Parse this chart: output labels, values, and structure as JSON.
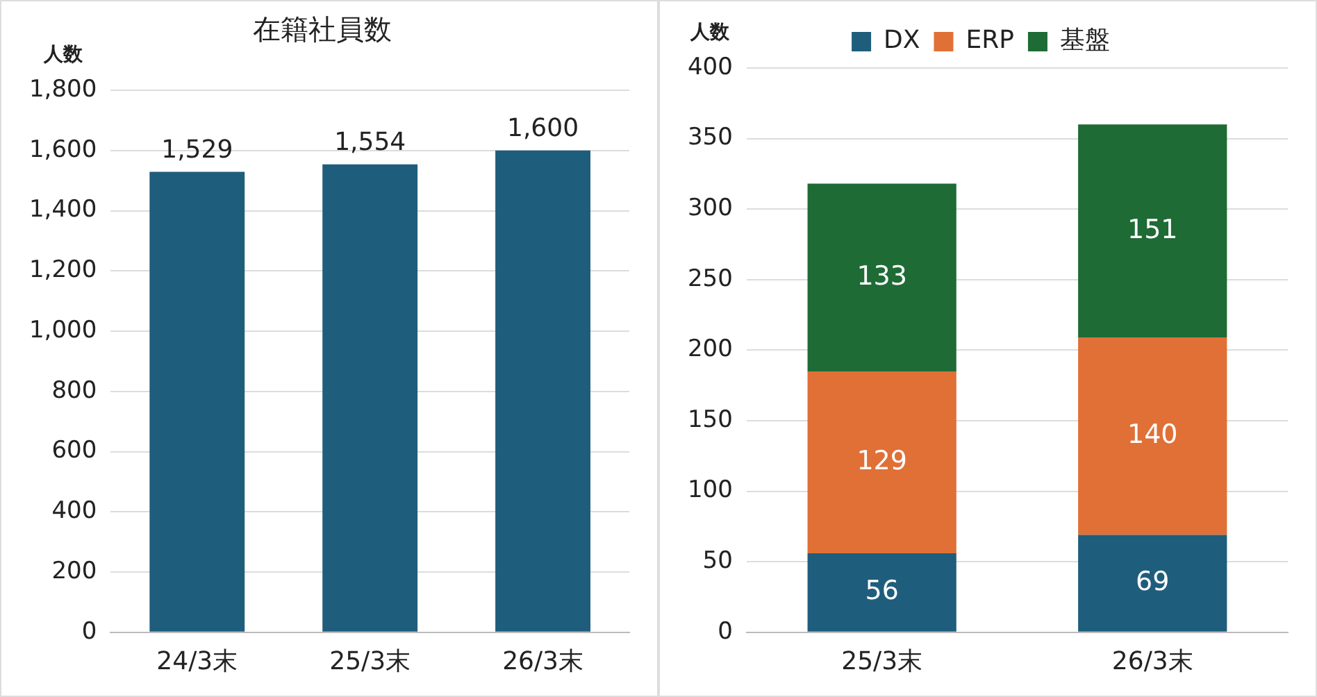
{
  "chart_data": [
    {
      "type": "bar",
      "title": "在籍社員数",
      "ylabel": "人数",
      "categories": [
        "24/3末",
        "25/3末",
        "26/3末"
      ],
      "values": [
        1529,
        1554,
        1600
      ],
      "color": "#1f5d7c",
      "value_labels": [
        "1,529",
        "1,554",
        "1,600"
      ],
      "ylim": [
        0,
        1800
      ],
      "yticks": [
        0,
        200,
        400,
        600,
        800,
        {
          "value": 1000,
          "label": "1,000"
        },
        {
          "value": 1200,
          "label": "1,200"
        },
        {
          "value": 1400,
          "label": "1,400"
        },
        {
          "value": 1600,
          "label": "1,600"
        },
        {
          "value": 1800,
          "label": "1,800"
        }
      ],
      "grid": "y"
    },
    {
      "type": "bar",
      "ylabel": "人数",
      "categories": [
        "25/3末",
        "26/3末"
      ],
      "stacked": true,
      "legend": "top",
      "data_labels": true,
      "ylim": [
        0,
        400
      ],
      "yticks": [
        0,
        50,
        100,
        150,
        200,
        250,
        300,
        350,
        400
      ],
      "grid": "y",
      "series": [
        {
          "name": "DX",
          "color": "#1f5d7c",
          "values": [
            56,
            69
          ]
        },
        {
          "name": "ERP",
          "color": "#e07036",
          "values": [
            129,
            140
          ]
        },
        {
          "name": "基盤",
          "color": "#1e6b35",
          "values": [
            133,
            151
          ]
        }
      ]
    }
  ]
}
